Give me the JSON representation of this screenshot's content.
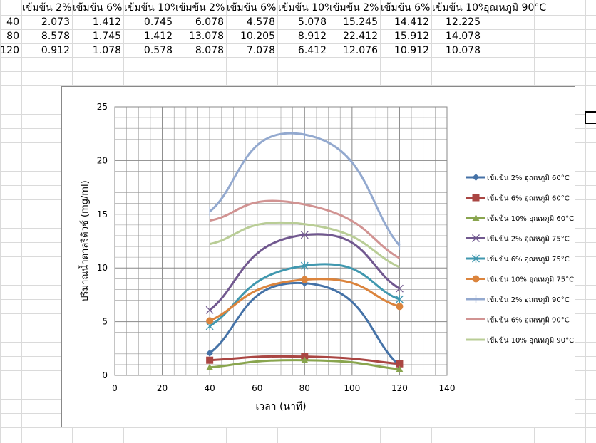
{
  "sheet": {
    "header": [
      "เข้มข้น 2%",
      "เข้มข้น 6%",
      "เข้มข้น 10%",
      "เข้มข้น 2%",
      "เข้มข้น 6%",
      "เข้มข้น 10%",
      "เข้มข้น 2%",
      "เข้มข้น 6%",
      "เข้มข้น 10%",
      "อุณหภูมิ 90°C"
    ],
    "rows": [
      [
        "40",
        "2.073",
        "1.412",
        "0.745",
        "6.078",
        "4.578",
        "5.078",
        "15.245",
        "14.412",
        "12.225"
      ],
      [
        "80",
        "8.578",
        "1.745",
        "1.412",
        "13.078",
        "10.205",
        "8.912",
        "22.412",
        "15.912",
        "14.078"
      ],
      [
        "120",
        "0.912",
        "1.078",
        "0.578",
        "8.078",
        "7.078",
        "6.412",
        "12.076",
        "10.912",
        "10.078"
      ]
    ]
  },
  "chart_data": {
    "type": "line",
    "xlabel": "เวลา (นาที)",
    "ylabel": "ปริมาณน้ำตาลรีดิวซ์ (mg/ml)",
    "xlim": [
      0,
      140
    ],
    "ylim": [
      0,
      25
    ],
    "xticks": [
      "0",
      "20",
      "40",
      "60",
      "80",
      "100",
      "120",
      "140"
    ],
    "yticks": [
      "0",
      "5",
      "10",
      "15",
      "20",
      "25"
    ],
    "grid": true,
    "legend": "right",
    "x": [
      40,
      80,
      120
    ],
    "series": [
      {
        "name": "เข้มข้น 2% อุณหภูมิ 60°C",
        "values": [
          2.073,
          8.578,
          0.912
        ],
        "color": "#4572A7",
        "marker": "diamond"
      },
      {
        "name": "เข้มข้น 6% อุณหภูมิ 60°C",
        "values": [
          1.412,
          1.745,
          1.078
        ],
        "color": "#AA4643",
        "marker": "square"
      },
      {
        "name": "เข้มข้น 10% อุณหภูมิ 60°C",
        "values": [
          0.745,
          1.412,
          0.578
        ],
        "color": "#89A54E",
        "marker": "triangle"
      },
      {
        "name": "เข้มข้น 2% อุณหภูมิ 75°C",
        "values": [
          6.078,
          13.078,
          8.078
        ],
        "color": "#71588F",
        "marker": "x"
      },
      {
        "name": "เข้มข้น 6% อุณหภูมิ 75°C",
        "values": [
          4.578,
          10.205,
          7.078
        ],
        "color": "#4198AF",
        "marker": "star"
      },
      {
        "name": "เข้มข้น 10% อุณหภูมิ 75°C",
        "values": [
          5.078,
          8.912,
          6.412
        ],
        "color": "#DB843D",
        "marker": "circle"
      },
      {
        "name": "เข้มข้น 2% อุณหภูมิ 90°C",
        "values": [
          15.245,
          22.412,
          12.076
        ],
        "color": "#93A9CF",
        "marker": "plus"
      },
      {
        "name": "เข้มข้น 6% อุณหภูมิ 90°C",
        "values": [
          14.412,
          15.912,
          10.912
        ],
        "color": "#D19392",
        "marker": "none"
      },
      {
        "name": "เข้มข้น 10% อุณหภูมิ 90°C",
        "values": [
          12.225,
          14.078,
          10.078
        ],
        "color": "#B9CD96",
        "marker": "none"
      }
    ]
  }
}
